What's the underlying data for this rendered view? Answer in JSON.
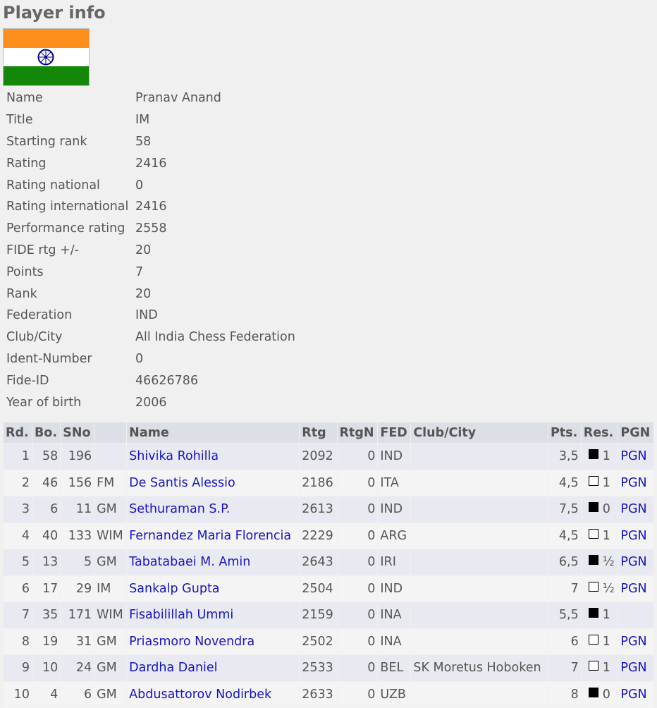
{
  "title": "Player info",
  "flag": {
    "country": "India",
    "colors": [
      "#ff8f1c",
      "#ffffff",
      "#138808"
    ],
    "chakra": "#000088"
  },
  "info": [
    [
      "Name",
      "Pranav Anand"
    ],
    [
      "Title",
      "IM"
    ],
    [
      "Starting rank",
      "58"
    ],
    [
      "Rating",
      "2416"
    ],
    [
      "Rating national",
      "0"
    ],
    [
      "Rating international",
      "2416"
    ],
    [
      "Performance rating",
      "2558"
    ],
    [
      "FIDE rtg +/-",
      "20"
    ],
    [
      "Points",
      "7"
    ],
    [
      "Rank",
      "20"
    ],
    [
      "Federation",
      "IND"
    ],
    [
      "Club/City",
      "All India Chess Federation"
    ],
    [
      "Ident-Number",
      "0"
    ],
    [
      "Fide-ID",
      "46626786"
    ],
    [
      "Year of birth",
      "2006"
    ]
  ],
  "headers": [
    "Rd.",
    "Bo.",
    "SNo",
    "",
    "Name",
    "Rtg",
    "RtgN",
    "FED",
    "Club/City",
    "Pts.",
    "Res.",
    "PGN"
  ],
  "rows": [
    {
      "rd": "1",
      "bo": "58",
      "sno": "196",
      "title": "",
      "name": "Shivika Rohilla",
      "rtg": "2092",
      "rtgn": "0",
      "fed": "IND",
      "club": "",
      "pts": "3,5",
      "color": "black",
      "res": "1",
      "pgn": "PGN"
    },
    {
      "rd": "2",
      "bo": "46",
      "sno": "156",
      "title": "FM",
      "name": "De Santis Alessio",
      "rtg": "2186",
      "rtgn": "0",
      "fed": "ITA",
      "club": "",
      "pts": "4,5",
      "color": "white",
      "res": "1",
      "pgn": "PGN"
    },
    {
      "rd": "3",
      "bo": "6",
      "sno": "11",
      "title": "GM",
      "name": "Sethuraman S.P.",
      "rtg": "2613",
      "rtgn": "0",
      "fed": "IND",
      "club": "",
      "pts": "7,5",
      "color": "black",
      "res": "0",
      "pgn": "PGN"
    },
    {
      "rd": "4",
      "bo": "40",
      "sno": "133",
      "title": "WIM",
      "name": "Fernandez Maria Florencia",
      "rtg": "2229",
      "rtgn": "0",
      "fed": "ARG",
      "club": "",
      "pts": "4,5",
      "color": "white",
      "res": "1",
      "pgn": "PGN"
    },
    {
      "rd": "5",
      "bo": "13",
      "sno": "5",
      "title": "GM",
      "name": "Tabatabaei M. Amin",
      "rtg": "2643",
      "rtgn": "0",
      "fed": "IRI",
      "club": "",
      "pts": "6,5",
      "color": "black",
      "res": "½",
      "pgn": "PGN"
    },
    {
      "rd": "6",
      "bo": "17",
      "sno": "29",
      "title": "IM",
      "name": "Sankalp Gupta",
      "rtg": "2504",
      "rtgn": "0",
      "fed": "IND",
      "club": "",
      "pts": "7",
      "color": "white",
      "res": "½",
      "pgn": "PGN"
    },
    {
      "rd": "7",
      "bo": "35",
      "sno": "171",
      "title": "WIM",
      "name": "Fisabilillah Ummi",
      "rtg": "2159",
      "rtgn": "0",
      "fed": "INA",
      "club": "",
      "pts": "5,5",
      "color": "black",
      "res": "1",
      "pgn": ""
    },
    {
      "rd": "8",
      "bo": "19",
      "sno": "31",
      "title": "GM",
      "name": "Priasmoro Novendra",
      "rtg": "2502",
      "rtgn": "0",
      "fed": "INA",
      "club": "",
      "pts": "6",
      "color": "white",
      "res": "1",
      "pgn": "PGN"
    },
    {
      "rd": "9",
      "bo": "10",
      "sno": "24",
      "title": "GM",
      "name": "Dardha Daniel",
      "rtg": "2533",
      "rtgn": "0",
      "fed": "BEL",
      "club": "SK Moretus Hoboken",
      "pts": "7",
      "color": "white",
      "res": "1",
      "pgn": "PGN"
    },
    {
      "rd": "10",
      "bo": "4",
      "sno": "6",
      "title": "GM",
      "name": "Abdusattorov Nodirbek",
      "rtg": "2633",
      "rtgn": "0",
      "fed": "UZB",
      "club": "",
      "pts": "8",
      "color": "black",
      "res": "0",
      "pgn": "PGN"
    }
  ]
}
